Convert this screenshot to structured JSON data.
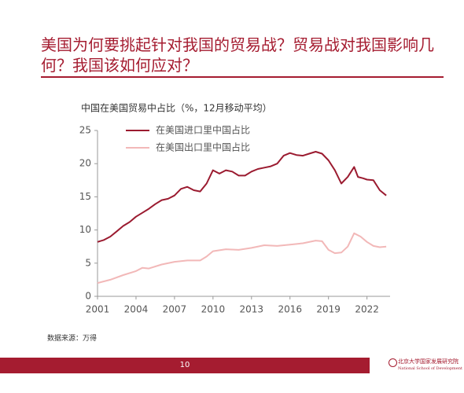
{
  "header": {
    "title": "美国为何要挑起针对我国的贸易战？贸易战对我国影响几何？我国该如何应对？"
  },
  "chart_data": {
    "type": "line",
    "y_label": "中国在美国贸易中占比（%，12月移动平均）",
    "xlim": [
      2001,
      2023.8
    ],
    "xticks": [
      2001,
      2004,
      2007,
      2010,
      2013,
      2016,
      2019,
      2022
    ],
    "ylim": [
      0,
      25
    ],
    "yticks": [
      0,
      5,
      10,
      15,
      20,
      25
    ],
    "series": [
      {
        "name": "在美国进口里中国占比",
        "color": "#9b1b30",
        "x": [
          2001,
          2001.5,
          2002,
          2002.5,
          2003,
          2003.5,
          2004,
          2004.5,
          2005,
          2005.5,
          2006,
          2006.5,
          2007,
          2007.5,
          2008,
          2008.5,
          2009,
          2009.5,
          2010,
          2010.5,
          2011,
          2011.5,
          2012,
          2012.5,
          2013,
          2013.5,
          2014,
          2014.5,
          2015,
          2015.5,
          2016,
          2016.5,
          2017,
          2017.5,
          2018,
          2018.5,
          2019,
          2019.5,
          2020,
          2020.5,
          2021,
          2021.3,
          2021.7,
          2022,
          2022.5,
          2023,
          2023.5
        ],
        "values": [
          8.2,
          8.5,
          9.0,
          9.8,
          10.6,
          11.2,
          12.0,
          12.6,
          13.2,
          13.9,
          14.5,
          14.7,
          15.2,
          16.2,
          16.5,
          16.0,
          15.8,
          17.0,
          19.0,
          18.5,
          19.0,
          18.8,
          18.2,
          18.2,
          18.8,
          19.2,
          19.4,
          19.6,
          20.0,
          21.2,
          21.6,
          21.3,
          21.2,
          21.5,
          21.8,
          21.5,
          20.5,
          19.0,
          17.0,
          18.0,
          19.5,
          18.0,
          17.8,
          17.6,
          17.5,
          16.0,
          15.2
        ]
      },
      {
        "name": "在美国出口里中国占比",
        "color": "#f2b8b8",
        "x": [
          2001,
          2002,
          2003,
          2004,
          2004.5,
          2005,
          2006,
          2007,
          2008,
          2009,
          2009.5,
          2010,
          2011,
          2012,
          2013,
          2014,
          2015,
          2016,
          2017,
          2018,
          2018.5,
          2019,
          2019.5,
          2020,
          2020.5,
          2021,
          2021.5,
          2022,
          2022.5,
          2023,
          2023.5
        ],
        "values": [
          2.0,
          2.5,
          3.2,
          3.8,
          4.3,
          4.2,
          4.8,
          5.2,
          5.4,
          5.4,
          6.0,
          6.8,
          7.1,
          7.0,
          7.3,
          7.7,
          7.6,
          7.8,
          8.0,
          8.4,
          8.3,
          7.0,
          6.5,
          6.6,
          7.5,
          9.5,
          9.0,
          8.2,
          7.6,
          7.4,
          7.5
        ]
      }
    ]
  },
  "source": "数据来源：万得",
  "footer": {
    "page": "10",
    "logo_cn": "北京大学国家发展研究院",
    "logo_en": "National School of Development"
  }
}
